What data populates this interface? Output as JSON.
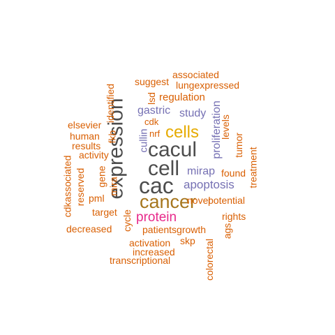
{
  "colors": {
    "orange": "#d95f02",
    "slate": "#7570b3",
    "dark": "#4d4d4d",
    "gold": "#e6ab02",
    "olive": "#a6761d",
    "magenta": "#e7298a",
    "background": "#ffffff"
  },
  "words": [
    {
      "id": "expression",
      "text": "expression",
      "color": "dark"
    },
    {
      "id": "cacul",
      "text": "cacul",
      "color": "dark"
    },
    {
      "id": "cell",
      "text": "cell",
      "color": "dark"
    },
    {
      "id": "cac",
      "text": "cac",
      "color": "dark"
    },
    {
      "id": "cancer",
      "text": "cancer",
      "color": "olive"
    },
    {
      "id": "cells",
      "text": "cells",
      "color": "gold"
    },
    {
      "id": "protein",
      "text": "protein",
      "color": "magenta"
    },
    {
      "id": "apoptosis",
      "text": "apoptosis",
      "color": "slate"
    },
    {
      "id": "mirap",
      "text": "mirap",
      "color": "slate"
    },
    {
      "id": "gastric",
      "text": "gastric",
      "color": "slate"
    },
    {
      "id": "study",
      "text": "study",
      "color": "slate"
    },
    {
      "id": "proliferation",
      "text": "proliferation",
      "color": "slate"
    },
    {
      "id": "cullin",
      "text": "cullin",
      "color": "slate"
    },
    {
      "id": "regulation",
      "text": "regulation",
      "color": "orange"
    },
    {
      "id": "associated",
      "text": "associated",
      "color": "orange"
    },
    {
      "id": "suggest",
      "text": "suggest",
      "color": "orange"
    },
    {
      "id": "lungexpressed",
      "text": "lungexpressed",
      "color": "orange"
    },
    {
      "id": "lsd",
      "text": "lsd",
      "color": "orange"
    },
    {
      "id": "identified",
      "text": "identified",
      "color": "orange"
    },
    {
      "id": "fkb",
      "text": "fkb",
      "color": "orange"
    },
    {
      "id": "cdk",
      "text": "cdk",
      "color": "orange"
    },
    {
      "id": "nrf",
      "text": "nrf",
      "color": "orange"
    },
    {
      "id": "elsevier",
      "text": "elsevier",
      "color": "orange"
    },
    {
      "id": "human",
      "text": "human",
      "color": "orange"
    },
    {
      "id": "results",
      "text": "results",
      "color": "orange"
    },
    {
      "id": "activity",
      "text": "activity",
      "color": "orange"
    },
    {
      "id": "levels",
      "text": "levels",
      "color": "orange"
    },
    {
      "id": "tumor",
      "text": "tumor",
      "color": "orange"
    },
    {
      "id": "found",
      "text": "found",
      "color": "orange"
    },
    {
      "id": "treatment",
      "text": "treatment",
      "color": "orange"
    },
    {
      "id": "cdkassociated",
      "text": "cdkassociated",
      "color": "orange"
    },
    {
      "id": "reserved",
      "text": "reserved",
      "color": "orange"
    },
    {
      "id": "gene",
      "text": "gene",
      "color": "orange"
    },
    {
      "id": "mira",
      "text": "mira",
      "color": "orange"
    },
    {
      "id": "pml",
      "text": "pml",
      "color": "orange"
    },
    {
      "id": "target",
      "text": "target",
      "color": "orange"
    },
    {
      "id": "novel",
      "text": "novel",
      "color": "orange"
    },
    {
      "id": "potential",
      "text": "potential",
      "color": "orange"
    },
    {
      "id": "rights",
      "text": "rights",
      "color": "orange"
    },
    {
      "id": "decreased",
      "text": "decreased",
      "color": "orange"
    },
    {
      "id": "cycle",
      "text": "cycle",
      "color": "orange"
    },
    {
      "id": "patientsgrowth",
      "text": "patientsgrowth",
      "color": "orange"
    },
    {
      "id": "ags",
      "text": "ags",
      "color": "orange"
    },
    {
      "id": "activation",
      "text": "activation",
      "color": "orange"
    },
    {
      "id": "skp",
      "text": "skp",
      "color": "orange"
    },
    {
      "id": "increased",
      "text": "increased",
      "color": "orange"
    },
    {
      "id": "transcriptional",
      "text": "transcriptional",
      "color": "orange"
    },
    {
      "id": "colorectal",
      "text": "colorectal",
      "color": "orange"
    }
  ]
}
